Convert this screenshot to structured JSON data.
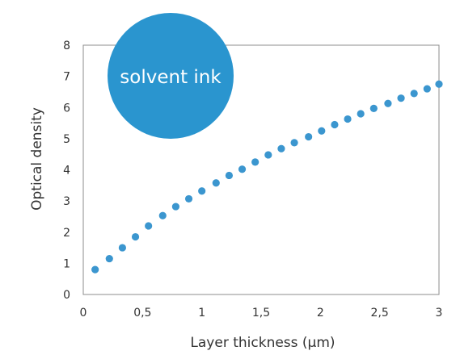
{
  "chart_data": {
    "type": "scatter",
    "title": "",
    "xlabel": "Layer thickness (µm)",
    "ylabel": "Optical density",
    "xlim": [
      0,
      3
    ],
    "ylim": [
      0,
      8
    ],
    "xticks": [
      0,
      0.5,
      1,
      1.5,
      2,
      2.5,
      3
    ],
    "xtick_labels": [
      "0",
      "0,5",
      "1",
      "1,5",
      "2",
      "2,5",
      "3"
    ],
    "yticks": [
      0,
      1,
      2,
      3,
      4,
      5,
      6,
      7,
      8
    ],
    "ytick_labels": [
      "0",
      "1",
      "2",
      "3",
      "4",
      "5",
      "6",
      "7",
      "8"
    ],
    "grid": false,
    "series": [
      {
        "color": "#3b96cf",
        "x": [
          0.1,
          0.22,
          0.33,
          0.44,
          0.55,
          0.67,
          0.78,
          0.89,
          1.0,
          1.12,
          1.23,
          1.34,
          1.45,
          1.56,
          1.67,
          1.78,
          1.9,
          2.01,
          2.12,
          2.23,
          2.34,
          2.45,
          2.57,
          2.68,
          2.79,
          2.9,
          3.0
        ],
        "y": [
          0.8,
          1.15,
          1.5,
          1.85,
          2.2,
          2.53,
          2.82,
          3.07,
          3.32,
          3.58,
          3.82,
          4.02,
          4.25,
          4.48,
          4.68,
          4.87,
          5.06,
          5.25,
          5.45,
          5.63,
          5.8,
          5.97,
          6.13,
          6.3,
          6.45,
          6.6,
          6.75
        ]
      }
    ],
    "annotation": {
      "text": "solvent ink",
      "color": "#2a95cf",
      "text_color": "#ffffff"
    }
  }
}
